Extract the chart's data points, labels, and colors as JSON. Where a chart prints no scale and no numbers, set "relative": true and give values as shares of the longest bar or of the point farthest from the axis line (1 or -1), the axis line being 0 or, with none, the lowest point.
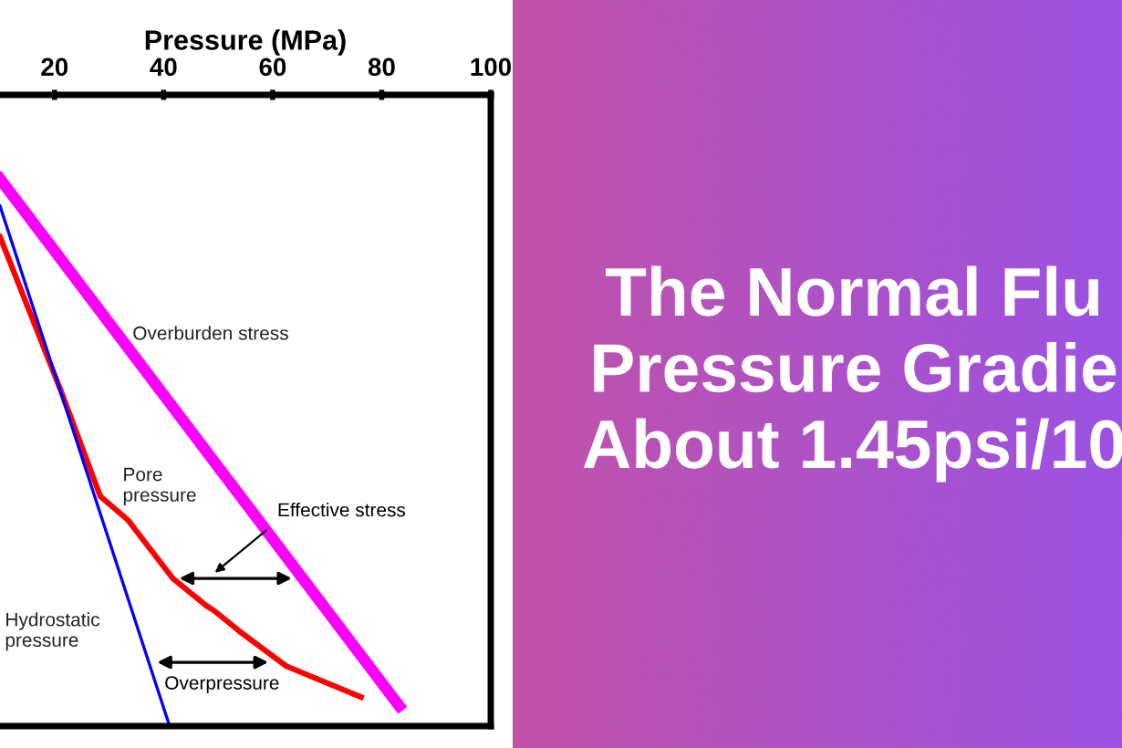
{
  "chart_data": {
    "type": "line",
    "title": "The Normal Flu\nPressure Gradie\nAbout 1.45psi/10",
    "xlabel": "Pressure (MPa)",
    "relative": true,
    "xlim": [
      10,
      100
    ],
    "xticks": [
      20,
      40,
      60,
      80,
      100
    ],
    "grid": false,
    "legend": false,
    "marker": "none",
    "line_style": "solid",
    "series": [
      {
        "name": "Overburden stress",
        "color": "#ff00ff",
        "x": [
          10,
          83.2
        ],
        "values": [
          -0.133,
          -0.968
        ]
      },
      {
        "name": "Pore\npressure",
        "color": "#ff0000",
        "x": [
          10,
          21.0,
          28.4,
          33.4,
          41.7,
          47.8,
          49.4,
          54.4,
          62.5,
          76.2
        ],
        "values": [
          -0.225,
          -0.465,
          -0.636,
          -0.673,
          -0.766,
          -0.809,
          -0.818,
          -0.853,
          -0.905,
          -0.954
        ]
      },
      {
        "name": "Hydrostatic\npressure",
        "color": "#0000ff",
        "x": [
          10,
          41.1
        ],
        "values": [
          -0.176,
          -1.0
        ]
      }
    ],
    "annotations": [
      "Effective stress",
      "Overpressure"
    ]
  }
}
